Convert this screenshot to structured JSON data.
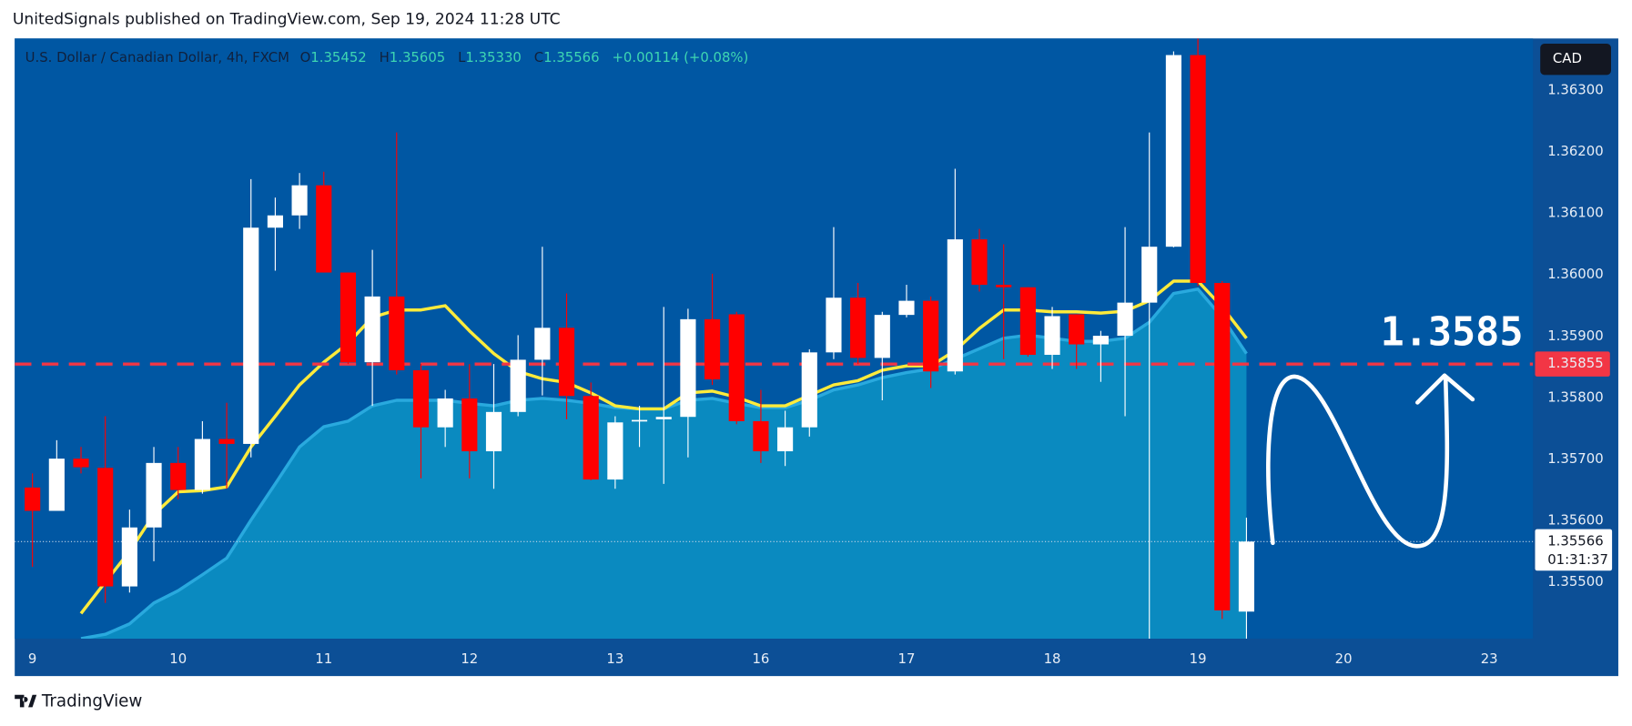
{
  "header": "UnitedSignals published on TradingView.com, Sep 19, 2024 11:28 UTC",
  "footer": "TradingView",
  "chart_data": {
    "type": "candlestick",
    "title": "U.S. Dollar / Canadian Dollar, 4h, FXCM",
    "ohlc": [
      {
        "label": "O",
        "value": "1.35452"
      },
      {
        "label": "H",
        "value": "1.35605"
      },
      {
        "label": "L",
        "value": "1.35330"
      },
      {
        "label": "C",
        "value": "1.35566"
      }
    ],
    "change": "+0.00114 (+0.08%)",
    "currency": "CAD",
    "countdown": "01:31:37",
    "annotation": "1.3585",
    "up_color": "#ffffff",
    "down_color": "#ff0000",
    "open": [
      1.35654,
      1.35616,
      1.35701,
      1.35686,
      1.35493,
      1.35589,
      1.35694,
      1.3565,
      1.35733,
      1.35725,
      1.36077,
      1.36097,
      1.36146,
      1.36004,
      1.35858,
      1.35965,
      1.35845,
      1.35752,
      1.35799,
      1.35713,
      1.35777,
      1.35862,
      1.35914,
      1.35803,
      1.35667,
      1.35762,
      1.35765,
      1.35769,
      1.35928,
      1.35936,
      1.35762,
      1.35713,
      1.35752,
      1.35874,
      1.35963,
      1.35865,
      1.35935,
      1.35958,
      1.35843,
      1.36058,
      1.35984,
      1.3598,
      1.3587,
      1.35936,
      1.35887,
      1.35901,
      1.35955,
      1.36046,
      1.36358,
      1.35987,
      1.35452
    ],
    "high": [
      1.35677,
      1.35731,
      1.3572,
      1.3577,
      1.35618,
      1.3572,
      1.3572,
      1.35762,
      1.35792,
      1.36156,
      1.36126,
      1.36166,
      1.36168,
      1.36004,
      1.36041,
      1.36232,
      1.35855,
      1.35813,
      1.35855,
      1.35855,
      1.35902,
      1.36046,
      1.3597,
      1.35825,
      1.3577,
      1.35787,
      1.35948,
      1.35945,
      1.36002,
      1.3594,
      1.35813,
      1.35779,
      1.35879,
      1.36078,
      1.35987,
      1.3594,
      1.35984,
      1.35965,
      1.36173,
      1.36075,
      1.3605,
      1.3598,
      1.35948,
      1.35936,
      1.35909,
      1.36078,
      1.36232,
      1.36364,
      1.36385,
      1.3599,
      1.35605
    ],
    "low": [
      1.35525,
      1.35616,
      1.35677,
      1.35466,
      1.35483,
      1.35534,
      1.35635,
      1.35644,
      1.35652,
      1.35703,
      1.36007,
      1.36075,
      1.36004,
      1.35855,
      1.35787,
      1.35838,
      1.35669,
      1.3572,
      1.35669,
      1.35652,
      1.3577,
      1.35804,
      1.35765,
      1.35666,
      1.35652,
      1.3572,
      1.3566,
      1.35703,
      1.35821,
      1.35757,
      1.35694,
      1.35689,
      1.35737,
      1.35863,
      1.35855,
      1.35796,
      1.35931,
      1.35816,
      1.35838,
      1.35973,
      1.35863,
      1.35867,
      1.35847,
      1.35847,
      1.35826,
      1.3577,
      1.35408,
      1.36045,
      1.35982,
      1.3544,
      1.3533
    ],
    "close": [
      1.35616,
      1.35701,
      1.35687,
      1.35493,
      1.35589,
      1.35694,
      1.3565,
      1.35733,
      1.35725,
      1.36077,
      1.36097,
      1.36146,
      1.36004,
      1.35858,
      1.35965,
      1.35845,
      1.35752,
      1.35799,
      1.35713,
      1.35777,
      1.35862,
      1.35914,
      1.35803,
      1.35667,
      1.3576,
      1.35764,
      1.35769,
      1.35928,
      1.3583,
      1.35762,
      1.35713,
      1.35752,
      1.35874,
      1.35963,
      1.35865,
      1.35935,
      1.35958,
      1.35843,
      1.36058,
      1.35984,
      1.3598,
      1.3587,
      1.35933,
      1.35887,
      1.35901,
      1.35955,
      1.36046,
      1.36358,
      1.35987,
      1.35454,
      1.35566
    ],
    "lines": [
      {
        "color": "#29a9de",
        "fill": "#0a8ac0",
        "values": [
          null,
          null,
          1.35408,
          1.35415,
          1.35432,
          1.35466,
          1.35486,
          1.35512,
          1.35539,
          1.35601,
          1.3566,
          1.3572,
          1.35753,
          1.35762,
          1.35787,
          1.35796,
          1.35796,
          1.35796,
          1.35791,
          1.35787,
          1.35796,
          1.35799,
          1.35796,
          1.35791,
          1.35784,
          1.35782,
          1.35782,
          1.35796,
          1.35799,
          1.35791,
          1.35784,
          1.35784,
          1.35796,
          1.35813,
          1.35821,
          1.35833,
          1.35841,
          1.35847,
          1.35863,
          1.3588,
          1.35897,
          1.35902,
          1.35897,
          1.35892,
          1.35892,
          1.35897,
          1.35923,
          1.3597,
          1.35977,
          1.35931,
          1.35872
        ]
      },
      {
        "color": "#ffeb3b",
        "values": [
          null,
          null,
          1.35449,
          1.355,
          1.3555,
          1.3561,
          1.35647,
          1.35649,
          1.35655,
          1.3572,
          1.3577,
          1.35821,
          1.35858,
          1.35889,
          1.35931,
          1.35943,
          1.35943,
          1.3595,
          1.35909,
          1.35872,
          1.35843,
          1.35831,
          1.35825,
          1.35808,
          1.35787,
          1.35782,
          1.35782,
          1.35808,
          1.35811,
          1.35801,
          1.35787,
          1.35787,
          1.35804,
          1.35821,
          1.35828,
          1.35845,
          1.35852,
          1.35852,
          1.35877,
          1.35913,
          1.35943,
          1.35943,
          1.3594,
          1.3594,
          1.35938,
          1.35941,
          1.35958,
          1.3599,
          1.3599,
          1.35948,
          1.35897
        ]
      }
    ],
    "level": 1.35855,
    "level_color": "#f23645",
    "last_price": 1.35566,
    "xlim": [
      -0.73,
      61.8
    ],
    "xticks": [
      {
        "value": 0,
        "label": "9"
      },
      {
        "value": 6,
        "label": "10"
      },
      {
        "value": 12,
        "label": "11"
      },
      {
        "value": 18,
        "label": "12"
      },
      {
        "value": 24,
        "label": "13"
      },
      {
        "value": 30,
        "label": "16"
      },
      {
        "value": 36,
        "label": "17"
      },
      {
        "value": 42,
        "label": "18"
      },
      {
        "value": 48,
        "label": "19"
      },
      {
        "value": 54,
        "label": "20"
      },
      {
        "value": 60,
        "label": "23"
      }
    ],
    "ylim": [
      1.35408,
      1.36385
    ],
    "yticks": [
      {
        "value": 1.363,
        "label": "1.36300"
      },
      {
        "value": 1.362,
        "label": "1.36200"
      },
      {
        "value": 1.361,
        "label": "1.36100"
      },
      {
        "value": 1.36,
        "label": "1.36000"
      },
      {
        "value": 1.359,
        "label": "1.35900"
      },
      {
        "value": 1.358,
        "label": "1.35800"
      },
      {
        "value": 1.357,
        "label": "1.35700"
      },
      {
        "value": 1.356,
        "label": "1.35600"
      },
      {
        "value": 1.355,
        "label": "1.35500"
      }
    ],
    "grid": false
  }
}
